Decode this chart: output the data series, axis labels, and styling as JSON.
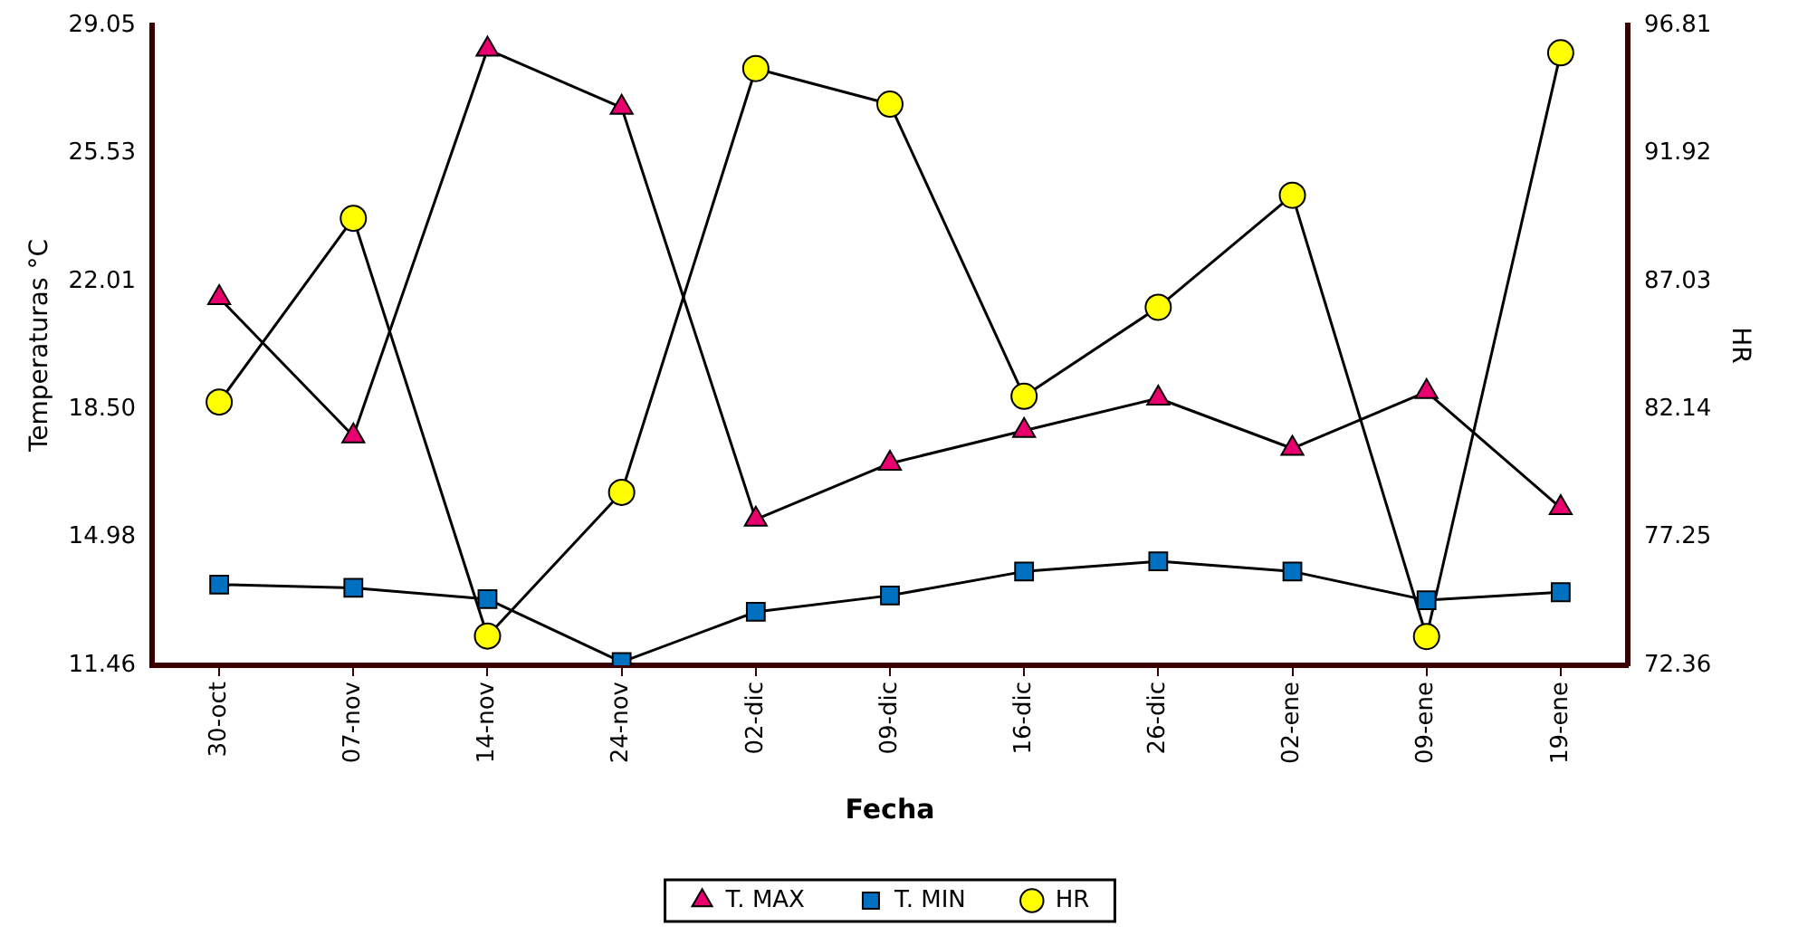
{
  "chart_data": {
    "type": "line",
    "xlabel": "Fecha",
    "ylabel": "Temperaturas °C",
    "y2label": "HR",
    "categories": [
      "30-oct",
      "07-nov",
      "14-nov",
      "24-nov",
      "02-dic",
      "09-dic",
      "16-dic",
      "26-dic",
      "02-ene",
      "09-ene",
      "19-ene"
    ],
    "series": [
      {
        "name": "T. MAX",
        "color": "#e8006e",
        "marker": "triangle",
        "values": [
          21.56,
          17.76,
          28.39,
          26.79,
          15.47,
          17.01,
          17.91,
          18.8,
          17.42,
          18.98,
          15.79
        ]
      },
      {
        "name": "T. MIN",
        "color": "#0070c0",
        "marker": "square",
        "values": [
          13.68,
          13.59,
          13.28,
          11.55,
          12.93,
          13.38,
          14.04,
          14.32,
          14.04,
          13.25,
          13.47
        ]
      },
      {
        "name": "HR",
        "color": "#ffff00",
        "marker": "circle",
        "axis": "y2",
        "values": [
          82.42,
          89.44,
          73.48,
          78.97,
          95.16,
          93.8,
          82.64,
          86.04,
          90.32,
          73.46,
          95.76
        ]
      }
    ],
    "ylim": [
      11.46,
      29.05
    ],
    "yticks": [
      11.46,
      14.98,
      {
        "value": 18.5,
        "label": "18.50"
      },
      22.01,
      25.53,
      29.05
    ],
    "y2lim": [
      72.36,
      96.81
    ],
    "y2ticks": [
      72.36,
      77.25,
      82.14,
      87.03,
      91.92,
      96.81
    ],
    "grid": false,
    "legend": "bottom",
    "line_style": "solid"
  }
}
